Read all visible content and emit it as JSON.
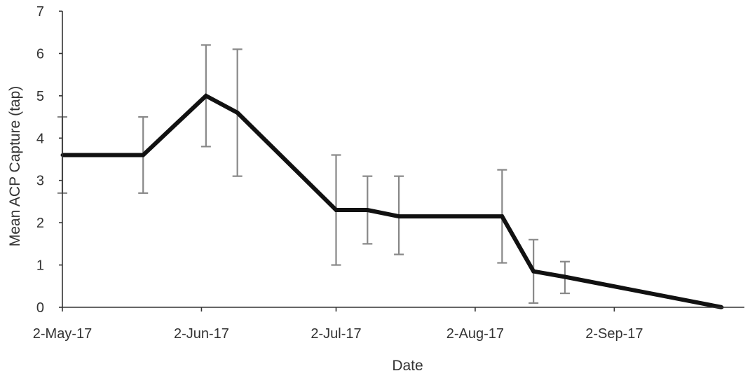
{
  "chart_data": {
    "type": "line",
    "xlabel": "Date",
    "ylabel": "Mean ACP Capture (tap)",
    "ylim": [
      0,
      7
    ],
    "yticks": [
      "0",
      "1",
      "2",
      "3",
      "4",
      "5",
      "6",
      "7"
    ],
    "xlim": [
      "2017-05-02",
      "2017-10-01"
    ],
    "xticks": [
      {
        "date": "2017-05-02",
        "label": "2-May-17"
      },
      {
        "date": "2017-06-02",
        "label": "2-Jun-17"
      },
      {
        "date": "2017-07-02",
        "label": "2-Jul-17"
      },
      {
        "date": "2017-08-02",
        "label": "2-Aug-17"
      },
      {
        "date": "2017-09-02",
        "label": "2-Sep-17"
      }
    ],
    "grid": false,
    "series": [
      {
        "color": "#111111",
        "points": [
          {
            "x": "2017-05-02",
            "y": 3.6,
            "err_low": 2.7,
            "err_high": 4.5
          },
          {
            "x": "2017-05-20",
            "y": 3.6,
            "err_low": 2.7,
            "err_high": 4.5
          },
          {
            "x": "2017-06-03",
            "y": 5.0,
            "err_low": 3.8,
            "err_high": 6.2
          },
          {
            "x": "2017-06-10",
            "y": 4.6,
            "err_low": 3.1,
            "err_high": 6.1
          },
          {
            "x": "2017-07-02",
            "y": 2.3,
            "err_low": 1.0,
            "err_high": 3.6
          },
          {
            "x": "2017-07-09",
            "y": 2.3,
            "err_low": 1.5,
            "err_high": 3.1
          },
          {
            "x": "2017-07-16",
            "y": 2.15,
            "err_low": 1.25,
            "err_high": 3.1
          },
          {
            "x": "2017-08-08",
            "y": 2.15,
            "err_low": 1.05,
            "err_high": 3.25
          },
          {
            "x": "2017-08-15",
            "y": 0.85,
            "err_low": 0.1,
            "err_high": 1.6
          },
          {
            "x": "2017-08-22",
            "y": 0.72,
            "err_low": 0.33,
            "err_high": 1.08
          },
          {
            "x": "2017-09-26",
            "y": 0.0
          }
        ]
      }
    ]
  }
}
